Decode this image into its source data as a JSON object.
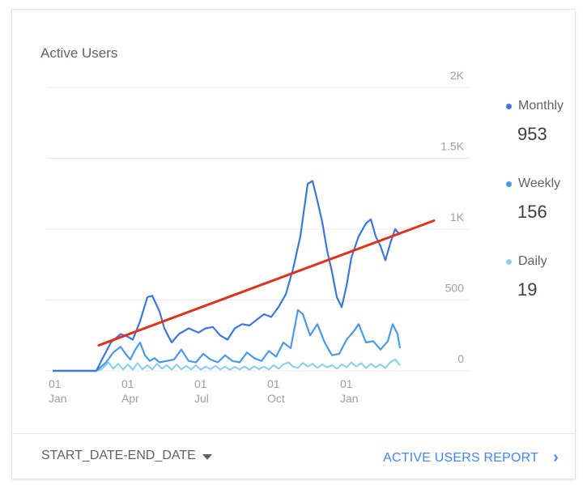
{
  "card": {
    "title": "Active Users",
    "date_range_label": "START_DATE-END_DATE",
    "report_link_label": "ACTIVE USERS REPORT",
    "chevron_glyph": "›"
  },
  "legend": [
    {
      "name": "Monthly",
      "value": "953",
      "color": "#3b78d8"
    },
    {
      "name": "Weekly",
      "value": "156",
      "color": "#4a9ae8"
    },
    {
      "name": "Daily",
      "value": "19",
      "color": "#8fd0f0"
    }
  ],
  "colors": {
    "monthly": "#3b78d8",
    "weekly": "#4a9ae8",
    "daily": "#8fd0f0",
    "trend": "#e0321c",
    "grid": "#e8e8e8"
  },
  "chart_data": {
    "type": "line",
    "grid": true,
    "legend_position": "right",
    "y_ticks": [
      "0",
      "500",
      "1K",
      "1.5K",
      "2K"
    ],
    "y_tick_values": [
      0,
      500,
      1000,
      1500,
      2000
    ],
    "ylim": [
      0,
      2000
    ],
    "x_ticks": [
      {
        "day": "01",
        "month": "Jan",
        "t": 0
      },
      {
        "day": "01",
        "month": "Apr",
        "t": 3
      },
      {
        "day": "01",
        "month": "Jul",
        "t": 6
      },
      {
        "day": "01",
        "month": "Oct",
        "t": 9
      },
      {
        "day": "01",
        "month": "Jan",
        "t": 12
      }
    ],
    "xlim": [
      0,
      15
    ],
    "series": [
      {
        "name": "Monthly",
        "color": "#3b78d8",
        "points": [
          [
            0,
            0
          ],
          [
            1.8,
            0
          ],
          [
            2,
            70
          ],
          [
            2.4,
            200
          ],
          [
            2.8,
            260
          ],
          [
            3.1,
            240
          ],
          [
            3.3,
            220
          ],
          [
            3.6,
            350
          ],
          [
            3.9,
            520
          ],
          [
            4.1,
            530
          ],
          [
            4.4,
            420
          ],
          [
            4.6,
            300
          ],
          [
            4.9,
            200
          ],
          [
            5.2,
            260
          ],
          [
            5.6,
            300
          ],
          [
            6,
            270
          ],
          [
            6.3,
            300
          ],
          [
            6.6,
            310
          ],
          [
            6.9,
            250
          ],
          [
            7.2,
            220
          ],
          [
            7.5,
            300
          ],
          [
            7.8,
            330
          ],
          [
            8.1,
            320
          ],
          [
            8.4,
            360
          ],
          [
            8.7,
            400
          ],
          [
            9,
            380
          ],
          [
            9.3,
            450
          ],
          [
            9.6,
            540
          ],
          [
            9.9,
            720
          ],
          [
            10.2,
            950
          ],
          [
            10.5,
            1320
          ],
          [
            10.7,
            1340
          ],
          [
            10.9,
            1200
          ],
          [
            11.1,
            1050
          ],
          [
            11.3,
            850
          ],
          [
            11.5,
            700
          ],
          [
            11.7,
            520
          ],
          [
            11.9,
            450
          ],
          [
            12.1,
            600
          ],
          [
            12.3,
            800
          ],
          [
            12.6,
            950
          ],
          [
            12.9,
            1040
          ],
          [
            13.1,
            1070
          ],
          [
            13.3,
            950
          ],
          [
            13.5,
            880
          ],
          [
            13.7,
            780
          ],
          [
            13.9,
            900
          ],
          [
            14.1,
            1000
          ],
          [
            14.3,
            960
          ]
        ]
      },
      {
        "name": "Weekly",
        "color": "#4a9ae8",
        "points": [
          [
            0,
            0
          ],
          [
            1.8,
            0
          ],
          [
            2,
            30
          ],
          [
            2.2,
            60
          ],
          [
            2.5,
            130
          ],
          [
            2.8,
            170
          ],
          [
            3,
            120
          ],
          [
            3.2,
            80
          ],
          [
            3.4,
            150
          ],
          [
            3.6,
            200
          ],
          [
            3.8,
            110
          ],
          [
            4,
            70
          ],
          [
            4.2,
            90
          ],
          [
            4.4,
            60
          ],
          [
            4.7,
            70
          ],
          [
            5,
            80
          ],
          [
            5.3,
            150
          ],
          [
            5.6,
            70
          ],
          [
            5.9,
            60
          ],
          [
            6.2,
            120
          ],
          [
            6.5,
            80
          ],
          [
            6.8,
            60
          ],
          [
            7.1,
            110
          ],
          [
            7.4,
            70
          ],
          [
            7.7,
            60
          ],
          [
            8,
            130
          ],
          [
            8.3,
            90
          ],
          [
            8.6,
            70
          ],
          [
            8.9,
            140
          ],
          [
            9.2,
            100
          ],
          [
            9.5,
            200
          ],
          [
            9.8,
            160
          ],
          [
            10.1,
            430
          ],
          [
            10.3,
            400
          ],
          [
            10.6,
            250
          ],
          [
            10.9,
            330
          ],
          [
            11.2,
            200
          ],
          [
            11.5,
            110
          ],
          [
            11.8,
            120
          ],
          [
            12.1,
            220
          ],
          [
            12.4,
            280
          ],
          [
            12.6,
            330
          ],
          [
            12.9,
            200
          ],
          [
            13.2,
            210
          ],
          [
            13.5,
            150
          ],
          [
            13.8,
            210
          ],
          [
            14,
            330
          ],
          [
            14.2,
            260
          ],
          [
            14.3,
            160
          ]
        ]
      },
      {
        "name": "Daily",
        "color": "#8fd0f0",
        "points": [
          [
            0,
            0
          ],
          [
            1.8,
            0
          ],
          [
            2,
            10
          ],
          [
            2.3,
            60
          ],
          [
            2.5,
            15
          ],
          [
            2.7,
            50
          ],
          [
            2.9,
            10
          ],
          [
            3.1,
            45
          ],
          [
            3.3,
            8
          ],
          [
            3.5,
            55
          ],
          [
            3.7,
            12
          ],
          [
            3.9,
            40
          ],
          [
            4.1,
            10
          ],
          [
            4.3,
            50
          ],
          [
            4.5,
            15
          ],
          [
            4.7,
            40
          ],
          [
            4.9,
            8
          ],
          [
            5.1,
            45
          ],
          [
            5.3,
            12
          ],
          [
            5.5,
            35
          ],
          [
            5.7,
            10
          ],
          [
            5.9,
            40
          ],
          [
            6.1,
            8
          ],
          [
            6.3,
            30
          ],
          [
            6.5,
            12
          ],
          [
            6.7,
            35
          ],
          [
            6.9,
            10
          ],
          [
            7.1,
            30
          ],
          [
            7.3,
            8
          ],
          [
            7.5,
            28
          ],
          [
            7.7,
            10
          ],
          [
            7.9,
            30
          ],
          [
            8.1,
            8
          ],
          [
            8.3,
            32
          ],
          [
            8.5,
            12
          ],
          [
            8.7,
            30
          ],
          [
            8.9,
            10
          ],
          [
            9.1,
            40
          ],
          [
            9.3,
            15
          ],
          [
            9.5,
            45
          ],
          [
            9.7,
            60
          ],
          [
            9.9,
            30
          ],
          [
            10.1,
            20
          ],
          [
            10.3,
            55
          ],
          [
            10.5,
            30
          ],
          [
            10.7,
            50
          ],
          [
            10.9,
            20
          ],
          [
            11.1,
            45
          ],
          [
            11.3,
            25
          ],
          [
            11.5,
            40
          ],
          [
            11.7,
            15
          ],
          [
            11.9,
            45
          ],
          [
            12.1,
            25
          ],
          [
            12.3,
            60
          ],
          [
            12.5,
            30
          ],
          [
            12.7,
            55
          ],
          [
            12.9,
            20
          ],
          [
            13.1,
            50
          ],
          [
            13.3,
            25
          ],
          [
            13.5,
            45
          ],
          [
            13.7,
            20
          ],
          [
            13.9,
            60
          ],
          [
            14.1,
            80
          ],
          [
            14.3,
            40
          ]
        ]
      }
    ],
    "trend_line": {
      "color": "#e0321c",
      "from": [
        1.9,
        180
      ],
      "to": [
        15.7,
        1060
      ]
    }
  }
}
